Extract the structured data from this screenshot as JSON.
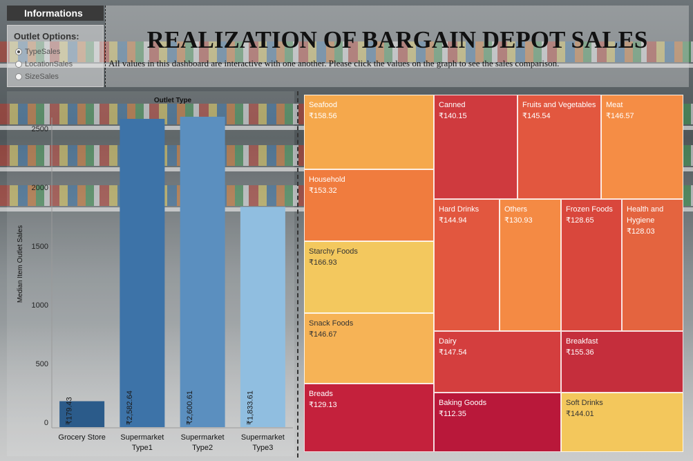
{
  "header": {
    "info_tab": "Informations",
    "title": "REALIZATION OF BARGAIN DEPOT SALES",
    "subtitle": "All values in this dashboard are interactive with one another. Please click the values on the graph to see the sales comparison."
  },
  "options": {
    "title": "Outlet Options:",
    "items": [
      {
        "label": "TypeSales",
        "selected": true
      },
      {
        "label": "LocationSales",
        "selected": false
      },
      {
        "label": "SizeSales",
        "selected": false
      }
    ]
  },
  "chart_data": [
    {
      "type": "bar",
      "title": "Outlet Type",
      "ylabel": "Median Item Outlet Sales",
      "categories": [
        "Grocery Store",
        "Supermarket Type1",
        "Supermarket Type2",
        "Supermarket Type3"
      ],
      "category_lines": [
        [
          "Grocery Store"
        ],
        [
          "Supermarket",
          "Type1"
        ],
        [
          "Supermarket",
          "Type2"
        ],
        [
          "Supermarket",
          "Type3"
        ]
      ],
      "values": [
        179.43,
        2582.64,
        2600.61,
        1833.61
      ],
      "value_labels": [
        "₹179.43",
        "₹2,582.64",
        "₹2,600.61",
        "₹1,833.61"
      ],
      "colors": [
        "#2b5b8a",
        "#3d73a8",
        "#5b8fbf",
        "#90bee0"
      ],
      "yticks": [
        0,
        500,
        1000,
        1500,
        2000,
        2500
      ],
      "ylim": [
        0,
        2700
      ]
    },
    {
      "type": "treemap",
      "items": [
        {
          "category": "Seafood",
          "value_label": "₹158.56",
          "color": "#f5a84c"
        },
        {
          "category": "Household",
          "value_label": "₹153.32",
          "color": "#f07c3e"
        },
        {
          "category": "Starchy Foods",
          "value_label": "₹166.93",
          "color": "#f3c85e"
        },
        {
          "category": "Snack Foods",
          "value_label": "₹146.67",
          "color": "#f6b356"
        },
        {
          "category": "Breads",
          "value_label": "₹129.13",
          "color": "#c4213c"
        },
        {
          "category": "Canned",
          "value_label": "₹140.15",
          "color": "#cf3a3e"
        },
        {
          "category": "Fruits and Vegetables",
          "value_label": "₹145.54",
          "color": "#e2573f"
        },
        {
          "category": "Meat",
          "value_label": "₹146.57",
          "color": "#f58d45"
        },
        {
          "category": "Hard Drinks",
          "value_label": "₹144.94",
          "color": "#e2573f"
        },
        {
          "category": "Others",
          "value_label": "₹130.93",
          "color": "#f48a44"
        },
        {
          "category": "Frozen Foods",
          "value_label": "₹128.65",
          "color": "#d9473c"
        },
        {
          "category": "Health and Hygiene",
          "value_label": "₹128.03",
          "color": "#e4643f"
        },
        {
          "category": "Dairy",
          "value_label": "₹147.54",
          "color": "#d43e3e"
        },
        {
          "category": "Breakfast",
          "value_label": "₹155.36",
          "color": "#c52e3c"
        },
        {
          "category": "Baking Goods",
          "value_label": "₹112.35",
          "color": "#b9183a"
        },
        {
          "category": "Soft Drinks",
          "value_label": "₹144.01",
          "color": "#f3c75c"
        }
      ]
    }
  ]
}
